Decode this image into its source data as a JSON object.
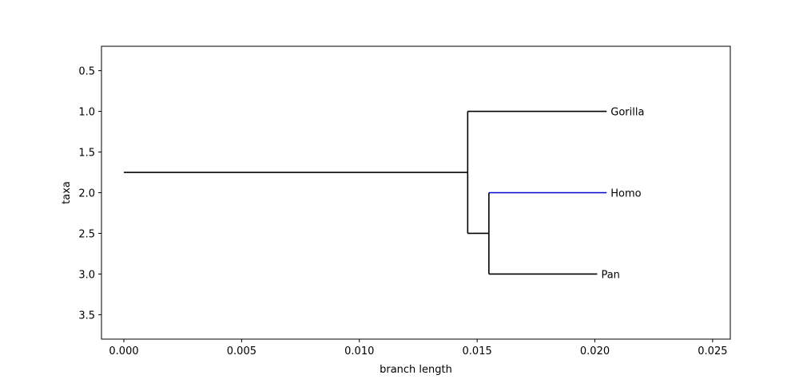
{
  "chart_data": {
    "type": "dendrogram",
    "xlabel": "branch length",
    "ylabel": "taxa",
    "xlim": [
      -0.00095,
      0.02575
    ],
    "ylim": [
      3.8,
      0.2
    ],
    "x_ticks": [
      "0.000",
      "0.005",
      "0.010",
      "0.015",
      "0.020",
      "0.025"
    ],
    "x_tick_values": [
      0.0,
      0.005,
      0.01,
      0.015,
      0.02,
      0.025
    ],
    "y_ticks": [
      "0.5",
      "1.0",
      "1.5",
      "2.0",
      "2.5",
      "3.0",
      "3.5"
    ],
    "y_tick_values": [
      0.5,
      1.0,
      1.5,
      2.0,
      2.5,
      3.0,
      3.5
    ],
    "grid": false,
    "branches": [
      {
        "from": "root",
        "to": "clade_gorilla_homo_pan",
        "x0": 0.0,
        "x1": 0.0146,
        "y": 1.75,
        "color": "#000000"
      },
      {
        "from": "clade_gorilla_homo_pan",
        "to": "Gorilla",
        "x0": 0.0146,
        "x1": 0.0205,
        "y": 1.0,
        "color": "#000000"
      },
      {
        "from": "clade_gorilla_homo_pan",
        "to": "clade_homo_pan",
        "x0": 0.0146,
        "x1": 0.0155,
        "y": 2.5,
        "color": "#000000"
      },
      {
        "from": "clade_homo_pan",
        "to": "Homo",
        "x0": 0.0155,
        "x1": 0.0205,
        "y": 2.0,
        "color": "#0000cc"
      },
      {
        "from": "clade_homo_pan",
        "to": "Pan",
        "x0": 0.0155,
        "x1": 0.0201,
        "y": 3.0,
        "color": "#000000"
      }
    ],
    "connectors": [
      {
        "x": 0.0146,
        "y0": 1.0,
        "y1": 2.5,
        "color": "#000000"
      },
      {
        "x": 0.0155,
        "y0": 2.0,
        "y1": 3.0,
        "color": "#000000"
      }
    ],
    "taxa": [
      {
        "name": "Gorilla",
        "x": 0.0205,
        "y": 1.0
      },
      {
        "name": "Homo",
        "x": 0.0205,
        "y": 2.0
      },
      {
        "name": "Pan",
        "x": 0.0201,
        "y": 3.0
      }
    ]
  }
}
